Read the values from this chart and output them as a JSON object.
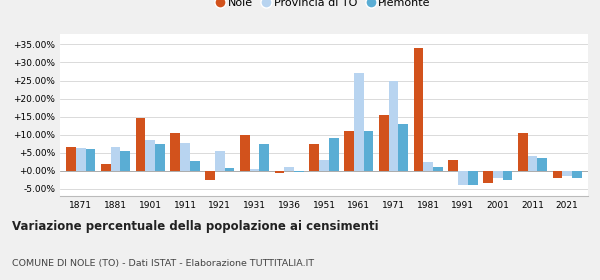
{
  "years": [
    1871,
    1881,
    1901,
    1911,
    1921,
    1931,
    1936,
    1951,
    1961,
    1971,
    1981,
    1991,
    2001,
    2011,
    2021
  ],
  "nole": [
    6.7,
    2.0,
    14.5,
    10.5,
    -2.5,
    10.0,
    -0.5,
    7.5,
    11.0,
    15.5,
    34.0,
    3.0,
    -3.5,
    10.5,
    -2.0
  ],
  "provincia_to": [
    6.3,
    6.5,
    8.5,
    7.8,
    5.5,
    0.6,
    1.0,
    3.0,
    27.0,
    25.0,
    2.5,
    -4.0,
    -2.0,
    4.0,
    -1.5
  ],
  "piemonte": [
    6.0,
    5.5,
    7.5,
    2.8,
    0.8,
    7.5,
    -0.3,
    9.0,
    11.0,
    13.0,
    1.0,
    -4.0,
    -2.5,
    3.5,
    -2.0
  ],
  "color_nole": "#d2521c",
  "color_provincia": "#b8d4f0",
  "color_piemonte": "#5aadd4",
  "title1": "Variazione percentuale della popolazione ai censimenti",
  "title2": "COMUNE DI NOLE (TO) - Dati ISTAT - Elaborazione TUTTITALIA.IT",
  "legend_labels": [
    "Nole",
    "Provincia di TO",
    "Piemonte"
  ],
  "ylim": [
    -7.0,
    38.0
  ],
  "yticks": [
    -5.0,
    0.0,
    5.0,
    10.0,
    15.0,
    20.0,
    25.0,
    30.0,
    35.0
  ],
  "background_color": "#f0f0f0",
  "plot_bg": "#ffffff"
}
